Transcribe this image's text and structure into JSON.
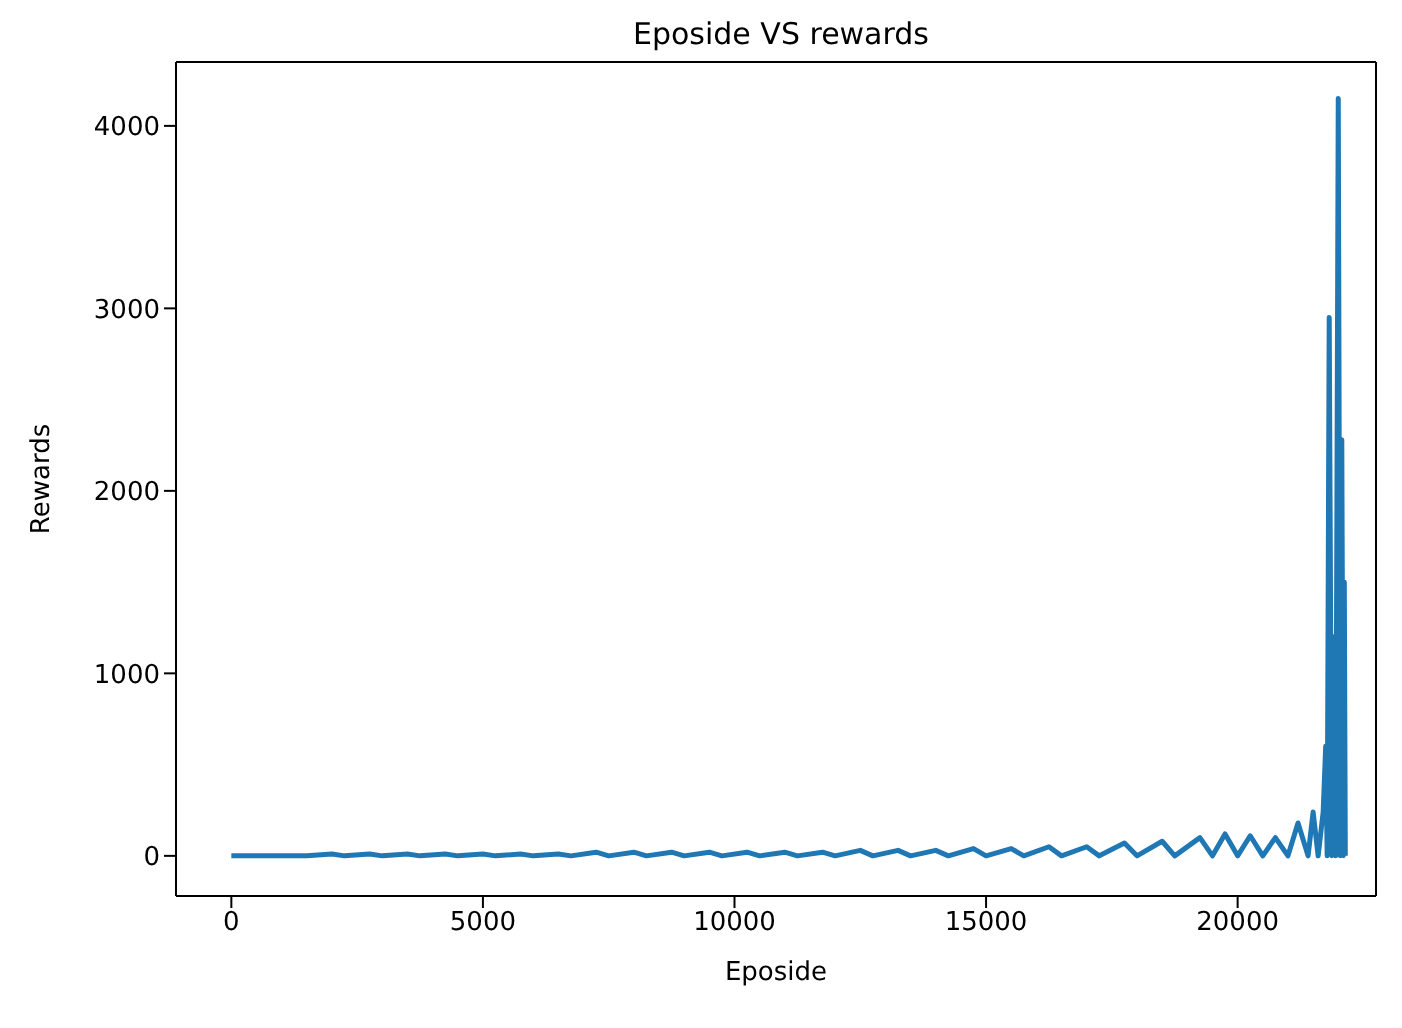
{
  "chart_data": {
    "type": "line",
    "title": "Eposide VS rewards",
    "xlabel": "Eposide",
    "ylabel": "Rewards",
    "x": [
      0,
      500,
      750,
      1250,
      1500,
      2000,
      2250,
      2750,
      3000,
      3500,
      3750,
      4250,
      4500,
      5000,
      5250,
      5750,
      6000,
      6500,
      6750,
      7250,
      7500,
      8000,
      8250,
      8750,
      9000,
      9500,
      9750,
      10250,
      10500,
      11000,
      11250,
      11750,
      12000,
      12500,
      12750,
      13250,
      13500,
      14000,
      14250,
      14750,
      15000,
      15500,
      15750,
      16250,
      16500,
      17000,
      17250,
      17750,
      18000,
      18500,
      18750,
      19250,
      19500,
      19750,
      20000,
      20250,
      20500,
      20750,
      21000,
      21200,
      21400,
      21500,
      21600,
      21700,
      21750,
      21780,
      21820,
      21870,
      21900,
      21950,
      22000,
      22040,
      22070,
      22100,
      22120,
      22140
    ],
    "series": [
      {
        "color": "#1f77b4",
        "values": [
          0,
          0,
          0,
          0,
          0,
          10,
          0,
          10,
          0,
          10,
          0,
          10,
          0,
          10,
          0,
          10,
          0,
          10,
          0,
          20,
          0,
          20,
          0,
          20,
          0,
          20,
          0,
          20,
          0,
          20,
          0,
          20,
          0,
          30,
          0,
          30,
          0,
          30,
          0,
          40,
          0,
          40,
          0,
          50,
          0,
          50,
          0,
          70,
          0,
          80,
          0,
          100,
          0,
          120,
          0,
          110,
          0,
          100,
          0,
          180,
          0,
          240,
          0,
          240,
          600,
          0,
          2950,
          0,
          1200,
          0,
          4150,
          0,
          2280,
          0,
          1500,
          0
        ]
      }
    ],
    "xlim": [
      -1100,
      22750
    ],
    "ylim": [
      -220,
      4350
    ],
    "xticks": [
      0,
      5000,
      10000,
      15000,
      20000
    ],
    "yticks": [
      0,
      1000,
      2000,
      3000,
      4000
    ],
    "marker": "none",
    "line_style": "solid"
  }
}
